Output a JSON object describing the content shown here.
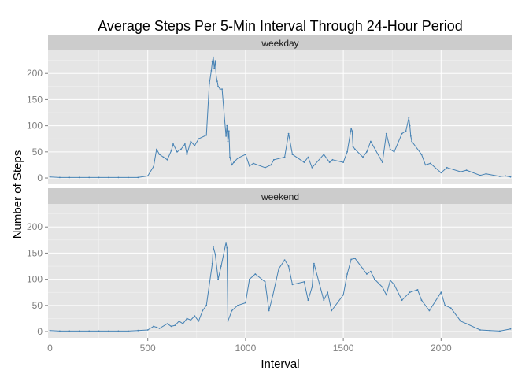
{
  "chart_data": {
    "type": "line",
    "title": "Average Steps Per 5-Min Interval Through 24-Hour Period",
    "xlabel": "Interval",
    "ylabel": "Number of Steps",
    "xlim": [
      -10,
      2365
    ],
    "ylim": [
      -12,
      244
    ],
    "xticks": [
      0,
      500,
      1000,
      1500,
      2000
    ],
    "yticks": [
      0,
      50,
      100,
      150,
      200
    ],
    "grid": true,
    "line_color": "#4682b4",
    "panels": [
      {
        "name": "weekday",
        "x": [
          0,
          50,
          100,
          150,
          200,
          250,
          300,
          350,
          400,
          450,
          500,
          530,
          545,
          560,
          580,
          600,
          620,
          630,
          650,
          670,
          690,
          700,
          720,
          740,
          760,
          800,
          815,
          825,
          830,
          835,
          840,
          845,
          850,
          855,
          860,
          870,
          880,
          900,
          905,
          910,
          915,
          920,
          930,
          940,
          960,
          1000,
          1020,
          1040,
          1100,
          1130,
          1145,
          1200,
          1220,
          1240,
          1300,
          1320,
          1340,
          1400,
          1430,
          1445,
          1500,
          1520,
          1540,
          1545,
          1550,
          1560,
          1600,
          1620,
          1640,
          1700,
          1720,
          1740,
          1760,
          1800,
          1820,
          1835,
          1840,
          1845,
          1850,
          1900,
          1920,
          1945,
          2000,
          2030,
          2100,
          2130,
          2200,
          2230,
          2300,
          2330,
          2355
        ],
        "y": [
          2,
          1,
          1,
          1,
          1,
          1,
          1,
          1,
          1,
          1,
          4,
          22,
          55,
          45,
          40,
          35,
          52,
          65,
          50,
          55,
          65,
          45,
          70,
          62,
          75,
          82,
          180,
          205,
          222,
          231,
          210,
          224,
          195,
          185,
          175,
          170,
          170,
          80,
          100,
          70,
          90,
          40,
          25,
          30,
          38,
          45,
          23,
          28,
          20,
          25,
          35,
          40,
          85,
          45,
          30,
          40,
          20,
          45,
          30,
          35,
          30,
          50,
          95,
          90,
          60,
          55,
          40,
          50,
          70,
          30,
          85,
          55,
          50,
          85,
          90,
          115,
          100,
          80,
          70,
          45,
          25,
          28,
          10,
          20,
          12,
          15,
          5,
          8,
          3,
          4,
          2
        ]
      },
      {
        "name": "weekend",
        "x": [
          0,
          50,
          100,
          150,
          200,
          250,
          300,
          350,
          400,
          450,
          500,
          530,
          545,
          560,
          600,
          620,
          640,
          660,
          680,
          700,
          720,
          740,
          760,
          780,
          800,
          830,
          835,
          845,
          860,
          875,
          900,
          905,
          910,
          930,
          960,
          1000,
          1020,
          1050,
          1100,
          1120,
          1140,
          1170,
          1200,
          1220,
          1240,
          1300,
          1320,
          1340,
          1350,
          1400,
          1420,
          1440,
          1500,
          1520,
          1540,
          1560,
          1600,
          1620,
          1640,
          1660,
          1700,
          1720,
          1740,
          1760,
          1800,
          1840,
          1880,
          1900,
          1940,
          2000,
          2020,
          2050,
          2100,
          2130,
          2200,
          2250,
          2300,
          2355
        ],
        "y": [
          2,
          1,
          1,
          1,
          1,
          1,
          1,
          1,
          1,
          2,
          3,
          10,
          8,
          6,
          15,
          10,
          12,
          20,
          15,
          25,
          22,
          30,
          20,
          40,
          50,
          130,
          162,
          148,
          100,
          125,
          170,
          160,
          20,
          40,
          50,
          55,
          100,
          110,
          95,
          40,
          70,
          120,
          137,
          125,
          90,
          95,
          60,
          85,
          130,
          60,
          75,
          40,
          70,
          110,
          138,
          140,
          120,
          110,
          115,
          100,
          85,
          70,
          98,
          90,
          60,
          75,
          80,
          60,
          40,
          75,
          50,
          45,
          20,
          15,
          3,
          2,
          1,
          5
        ]
      }
    ]
  }
}
